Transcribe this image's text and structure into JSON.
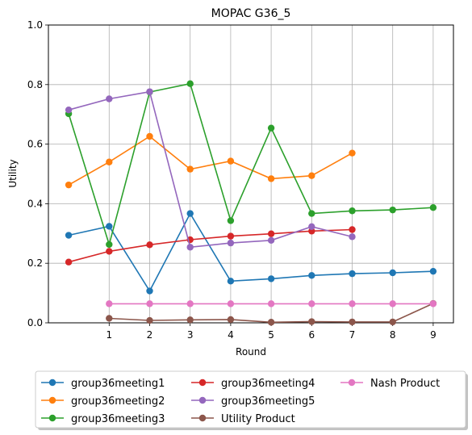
{
  "chart_data": {
    "type": "line",
    "title": "MOPAC G36_5",
    "xlabel": "Round",
    "ylabel": "Utility",
    "xlim": [
      -0.5,
      9.5
    ],
    "ylim": [
      0,
      1.0
    ],
    "xticks": [
      1,
      2,
      3,
      4,
      5,
      6,
      7,
      8,
      9
    ],
    "yticks": [
      0.0,
      0.2,
      0.4,
      0.6,
      0.8,
      1.0
    ],
    "ytick_labels": [
      "0.0",
      "0.2",
      "0.4",
      "0.6",
      "0.8",
      "1.0"
    ],
    "grid": true,
    "legend_placement": "bottom",
    "series": [
      {
        "name": "group36meeting1",
        "color": "#1f77b4",
        "x": [
          0,
          1,
          2,
          3,
          4,
          5,
          6,
          7,
          8,
          9
        ],
        "y": [
          0.294,
          0.324,
          0.107,
          0.367,
          0.14,
          0.148,
          0.159,
          0.165,
          0.168,
          0.173
        ]
      },
      {
        "name": "group36meeting2",
        "color": "#ff7f0e",
        "x": [
          0,
          1,
          2,
          3,
          4,
          5,
          6,
          7
        ],
        "y": [
          0.463,
          0.54,
          0.626,
          0.516,
          0.543,
          0.484,
          0.494,
          0.57
        ]
      },
      {
        "name": "group36meeting3",
        "color": "#2ca02c",
        "x": [
          0,
          1,
          2,
          3,
          4,
          5,
          6,
          7,
          8,
          9
        ],
        "y": [
          0.702,
          0.263,
          0.775,
          0.803,
          0.343,
          0.654,
          0.367,
          0.376,
          0.379,
          0.387
        ]
      },
      {
        "name": "group36meeting4",
        "color": "#d62728",
        "x": [
          0,
          1,
          2,
          3,
          4,
          5,
          6,
          7
        ],
        "y": [
          0.204,
          0.24,
          0.262,
          0.279,
          0.291,
          0.299,
          0.308,
          0.313
        ]
      },
      {
        "name": "group36meeting5",
        "color": "#9467bd",
        "x": [
          0,
          1,
          2,
          3,
          4,
          5,
          6,
          7
        ],
        "y": [
          0.715,
          0.752,
          0.776,
          0.254,
          0.268,
          0.277,
          0.323,
          0.289
        ]
      },
      {
        "name": "Utility Product",
        "color": "#8c564b",
        "x": [
          1,
          2,
          3,
          4,
          5,
          6,
          7,
          8,
          9
        ],
        "y": [
          0.015,
          0.008,
          0.01,
          0.011,
          0.002,
          0.004,
          0.003,
          0.003,
          0.065
        ]
      },
      {
        "name": "Nash Product",
        "color": "#e377c2",
        "x": [
          1,
          2,
          3,
          4,
          5,
          6,
          7,
          8,
          9
        ],
        "y": [
          0.064,
          0.064,
          0.064,
          0.064,
          0.064,
          0.064,
          0.064,
          0.064,
          0.064
        ]
      }
    ]
  }
}
